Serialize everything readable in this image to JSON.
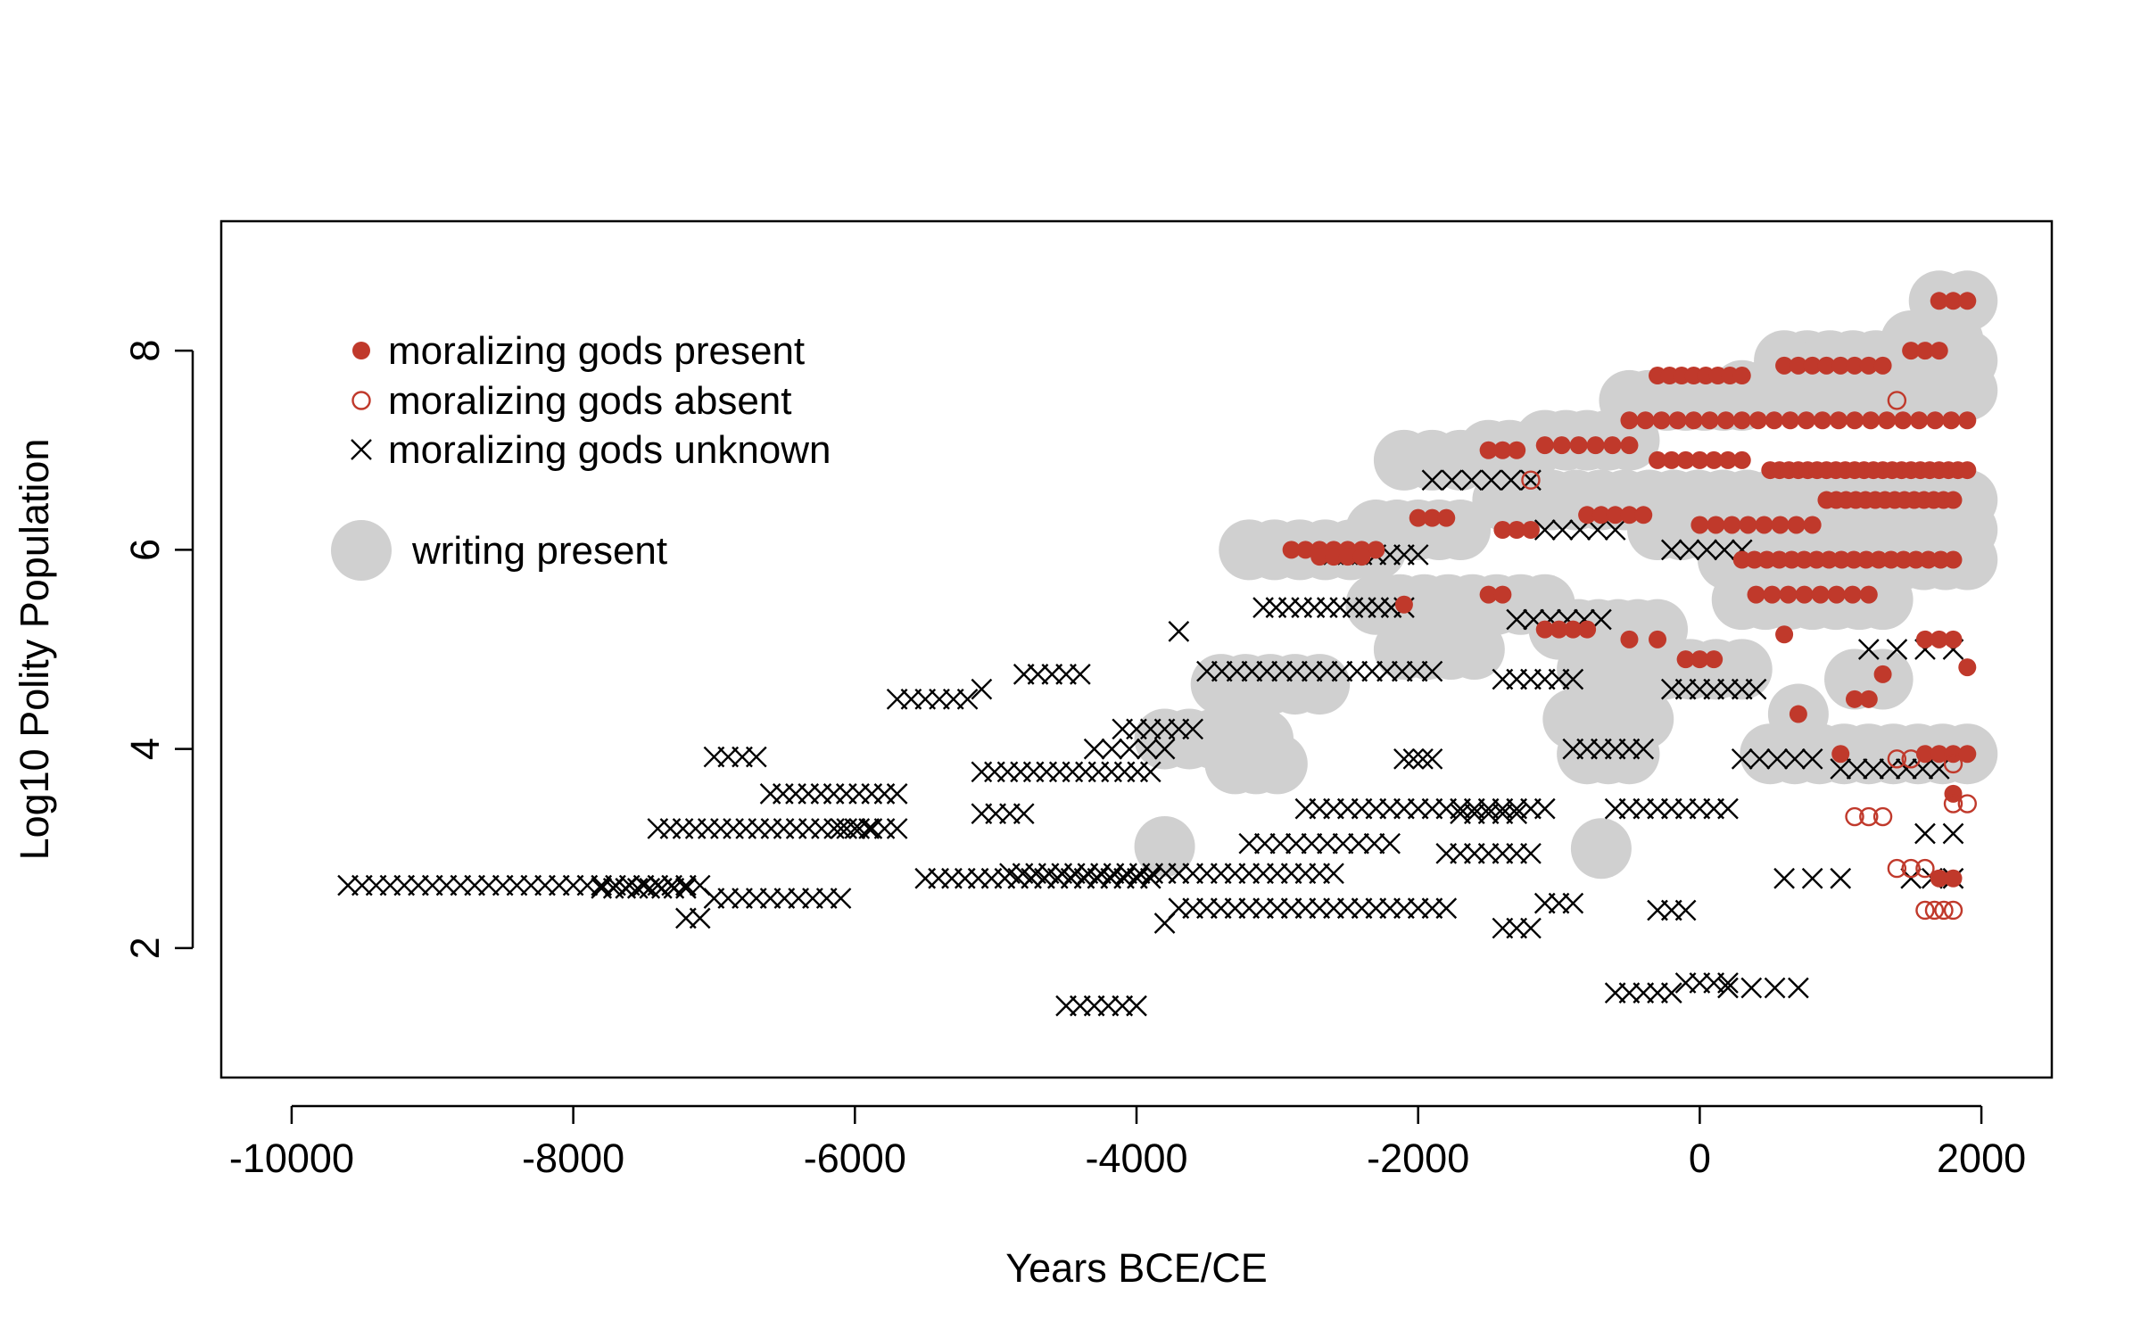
{
  "chart_data": {
    "type": "scatter",
    "title": "",
    "xlabel": "Years BCE/CE",
    "ylabel": "Log10 Polity Population",
    "xlim": [
      -10500,
      2500
    ],
    "ylim": [
      0.7,
      9.3
    ],
    "x_ticks": [
      -10000,
      -8000,
      -6000,
      -4000,
      -2000,
      0,
      2000
    ],
    "x_tick_labels": [
      "-10000",
      "-8000",
      "-6000",
      "-4000",
      "-2000",
      "0",
      "2000"
    ],
    "y_ticks": [
      2,
      4,
      6,
      8
    ],
    "y_tick_labels": [
      "2",
      "4",
      "6",
      "8"
    ],
    "grid": false,
    "legend_position": "top-left",
    "legend": [
      {
        "label": "moralizing gods present",
        "marker": "filled-circle",
        "color": "#c0392b"
      },
      {
        "label": "moralizing gods absent",
        "marker": "open-circle",
        "color": "#c0392b"
      },
      {
        "label": "moralizing gods unknown",
        "marker": "cross",
        "color": "#000000"
      },
      {
        "label": "writing present",
        "marker": "large-grey-circle",
        "color": "#d0d0d0"
      }
    ],
    "colors": {
      "present": "#c0392b",
      "absent": "#c0392b",
      "unknown": "#000000",
      "writing": "#d0d0d0"
    },
    "series": [
      {
        "name": "moralizing gods unknown",
        "marker": "cross",
        "segments": [
          {
            "x0": -9600,
            "x1": -7100,
            "y": 2.63,
            "n": 26
          },
          {
            "x0": -7800,
            "x1": -7200,
            "y": 2.6,
            "n": 8
          },
          {
            "x0": -7200,
            "x1": -7100,
            "y": 2.3,
            "n": 2
          },
          {
            "x0": -7000,
            "x1": -6700,
            "y": 3.92,
            "n": 4
          },
          {
            "x0": -7400,
            "x1": -5700,
            "y": 3.2,
            "n": 20
          },
          {
            "x0": -6600,
            "x1": -5700,
            "y": 3.55,
            "n": 11
          },
          {
            "x0": -7000,
            "x1": -6100,
            "y": 2.5,
            "n": 10
          },
          {
            "x0": -6100,
            "x1": -5900,
            "y": 3.2,
            "n": 3
          },
          {
            "x0": -5700,
            "x1": -5200,
            "y": 4.5,
            "n": 6
          },
          {
            "x0": -5100,
            "x1": -5100,
            "y": 4.6,
            "n": 1
          },
          {
            "x0": -4800,
            "x1": -4400,
            "y": 4.75,
            "n": 5
          },
          {
            "x0": -5500,
            "x1": -3900,
            "y": 2.7,
            "n": 18
          },
          {
            "x0": -5100,
            "x1": -3900,
            "y": 3.77,
            "n": 14
          },
          {
            "x0": -5100,
            "x1": -4800,
            "y": 3.35,
            "n": 4
          },
          {
            "x0": -4900,
            "x1": -3700,
            "y": 2.75,
            "n": 14
          },
          {
            "x0": -4500,
            "x1": -4000,
            "y": 1.42,
            "n": 6
          },
          {
            "x0": -4100,
            "x1": -3600,
            "y": 4.2,
            "n": 6
          },
          {
            "x0": -4300,
            "x1": -3800,
            "y": 4.0,
            "n": 5
          },
          {
            "x0": -3800,
            "x1": -3800,
            "y": 2.25,
            "n": 1
          },
          {
            "x0": -3700,
            "x1": -3700,
            "y": 5.18,
            "n": 1
          },
          {
            "x0": -3700,
            "x1": -2600,
            "y": 2.75,
            "n": 12
          },
          {
            "x0": -3700,
            "x1": -1800,
            "y": 2.4,
            "n": 20
          },
          {
            "x0": -3500,
            "x1": -1900,
            "y": 4.78,
            "n": 16
          },
          {
            "x0": -3100,
            "x1": -2100,
            "y": 5.42,
            "n": 12
          },
          {
            "x0": -3200,
            "x1": -2200,
            "y": 3.05,
            "n": 10
          },
          {
            "x0": -2800,
            "x1": -1100,
            "y": 3.4,
            "n": 18
          },
          {
            "x0": -2600,
            "x1": -2000,
            "y": 5.95,
            "n": 7
          },
          {
            "x0": -2100,
            "x1": -1900,
            "y": 3.9,
            "n": 4
          },
          {
            "x0": -1800,
            "x1": -1200,
            "y": 2.95,
            "n": 7
          },
          {
            "x0": -1700,
            "x1": -1300,
            "y": 3.35,
            "n": 5
          },
          {
            "x0": -1400,
            "x1": -900,
            "y": 4.7,
            "n": 6
          },
          {
            "x0": -1300,
            "x1": -700,
            "y": 5.3,
            "n": 6
          },
          {
            "x0": -1400,
            "x1": -1200,
            "y": 2.2,
            "n": 3
          },
          {
            "x0": -1100,
            "x1": -900,
            "y": 2.45,
            "n": 3
          },
          {
            "x0": -900,
            "x1": -400,
            "y": 4.0,
            "n": 6
          },
          {
            "x0": -600,
            "x1": 200,
            "y": 3.4,
            "n": 9
          },
          {
            "x0": -600,
            "x1": -200,
            "y": 1.55,
            "n": 5
          },
          {
            "x0": -100,
            "x1": 200,
            "y": 1.65,
            "n": 4
          },
          {
            "x0": 200,
            "x1": 700,
            "y": 1.6,
            "n": 4
          },
          {
            "x0": -300,
            "x1": -100,
            "y": 2.38,
            "n": 3
          },
          {
            "x0": -200,
            "x1": 400,
            "y": 4.6,
            "n": 7
          },
          {
            "x0": 300,
            "x1": 800,
            "y": 3.9,
            "n": 5
          },
          {
            "x0": 600,
            "x1": 1000,
            "y": 2.7,
            "n": 3
          },
          {
            "x0": 1000,
            "x1": 1700,
            "y": 3.8,
            "n": 7
          },
          {
            "x0": -1900,
            "x1": -1200,
            "y": 6.7,
            "n": 6
          },
          {
            "x0": -1100,
            "x1": -600,
            "y": 6.2,
            "n": 5
          },
          {
            "x0": -200,
            "x1": 300,
            "y": 6.0,
            "n": 5
          },
          {
            "x0": 1500,
            "x1": 1800,
            "y": 2.7,
            "n": 3
          },
          {
            "x0": 1600,
            "x1": 1800,
            "y": 3.15,
            "n": 2
          },
          {
            "x0": 1200,
            "x1": 1800,
            "y": 5.0,
            "n": 4
          }
        ]
      },
      {
        "name": "moralizing gods present",
        "marker": "filled-circle",
        "segments": [
          {
            "x0": 1700,
            "x1": 1900,
            "y": 8.5,
            "n": 3
          },
          {
            "x0": 1500,
            "x1": 1700,
            "y": 8.0,
            "n": 3
          },
          {
            "x0": -300,
            "x1": 300,
            "y": 7.75,
            "n": 8
          },
          {
            "x0": 600,
            "x1": 1300,
            "y": 7.85,
            "n": 8
          },
          {
            "x0": -500,
            "x1": 1900,
            "y": 7.3,
            "n": 22
          },
          {
            "x0": -1100,
            "x1": -500,
            "y": 7.05,
            "n": 6
          },
          {
            "x0": -1500,
            "x1": -1300,
            "y": 7.0,
            "n": 3
          },
          {
            "x0": 500,
            "x1": 1900,
            "y": 6.8,
            "n": 22
          },
          {
            "x0": -300,
            "x1": 300,
            "y": 6.9,
            "n": 7
          },
          {
            "x0": 900,
            "x1": 1800,
            "y": 6.5,
            "n": 14
          },
          {
            "x0": -800,
            "x1": -400,
            "y": 6.35,
            "n": 5
          },
          {
            "x0": -2000,
            "x1": -1800,
            "y": 6.32,
            "n": 3
          },
          {
            "x0": -1400,
            "x1": -1200,
            "y": 6.2,
            "n": 3
          },
          {
            "x0": 0,
            "x1": 800,
            "y": 6.25,
            "n": 8
          },
          {
            "x0": -2900,
            "x1": -2300,
            "y": 6.0,
            "n": 7
          },
          {
            "x0": -2700,
            "x1": -2400,
            "y": 5.93,
            "n": 4
          },
          {
            "x0": 300,
            "x1": 1800,
            "y": 5.9,
            "n": 18
          },
          {
            "x0": 400,
            "x1": 1200,
            "y": 5.55,
            "n": 8
          },
          {
            "x0": -2100,
            "x1": -2100,
            "y": 5.45,
            "n": 1
          },
          {
            "x0": -1500,
            "x1": -1400,
            "y": 5.55,
            "n": 2
          },
          {
            "x0": -1100,
            "x1": -800,
            "y": 5.2,
            "n": 4
          },
          {
            "x0": -500,
            "x1": -300,
            "y": 5.1,
            "n": 2
          },
          {
            "x0": -100,
            "x1": 100,
            "y": 4.9,
            "n": 3
          },
          {
            "x0": 600,
            "x1": 600,
            "y": 5.15,
            "n": 1
          },
          {
            "x0": 1300,
            "x1": 1300,
            "y": 4.75,
            "n": 1
          },
          {
            "x0": 1100,
            "x1": 1200,
            "y": 4.5,
            "n": 2
          },
          {
            "x0": 700,
            "x1": 700,
            "y": 4.35,
            "n": 1
          },
          {
            "x0": 1600,
            "x1": 1800,
            "y": 5.1,
            "n": 3
          },
          {
            "x0": 1900,
            "x1": 1900,
            "y": 4.82,
            "n": 1
          },
          {
            "x0": 1000,
            "x1": 1000,
            "y": 3.95,
            "n": 1
          },
          {
            "x0": 1600,
            "x1": 1900,
            "y": 3.95,
            "n": 4
          },
          {
            "x0": 1800,
            "x1": 1800,
            "y": 3.55,
            "n": 1
          },
          {
            "x0": 1700,
            "x1": 1800,
            "y": 2.7,
            "n": 2
          }
        ]
      },
      {
        "name": "moralizing gods absent",
        "marker": "open-circle",
        "segments": [
          {
            "x0": -1200,
            "x1": -1200,
            "y": 6.7,
            "n": 1
          },
          {
            "x0": 1100,
            "x1": 1300,
            "y": 3.32,
            "n": 3
          },
          {
            "x0": 1400,
            "x1": 1500,
            "y": 3.9,
            "n": 2
          },
          {
            "x0": 1800,
            "x1": 1900,
            "y": 3.45,
            "n": 2
          },
          {
            "x0": 1400,
            "x1": 1600,
            "y": 2.8,
            "n": 3
          },
          {
            "x0": 1600,
            "x1": 1800,
            "y": 2.38,
            "n": 4
          },
          {
            "x0": 1400,
            "x1": 1400,
            "y": 7.5,
            "n": 1
          },
          {
            "x0": 1800,
            "x1": 1800,
            "y": 3.85,
            "n": 1
          }
        ]
      },
      {
        "name": "writing present",
        "marker": "large-grey-circle",
        "segments": [
          {
            "x0": -3200,
            "x1": -2300,
            "y": 6.0,
            "n": 6
          },
          {
            "x0": -2300,
            "x1": -1700,
            "y": 6.2,
            "n": 5
          },
          {
            "x0": -2100,
            "x1": -1700,
            "y": 6.9,
            "n": 3
          },
          {
            "x0": -1500,
            "x1": -1200,
            "y": 7.0,
            "n": 3
          },
          {
            "x0": -1100,
            "x1": -500,
            "y": 7.1,
            "n": 5
          },
          {
            "x0": -500,
            "x1": 300,
            "y": 7.5,
            "n": 7
          },
          {
            "x0": 300,
            "x1": 1900,
            "y": 7.6,
            "n": 11
          },
          {
            "x0": 600,
            "x1": 1900,
            "y": 7.9,
            "n": 9
          },
          {
            "x0": 1700,
            "x1": 1900,
            "y": 8.5,
            "n": 2
          },
          {
            "x0": 1500,
            "x1": 1800,
            "y": 8.1,
            "n": 3
          },
          {
            "x0": -1400,
            "x1": 1900,
            "y": 6.5,
            "n": 20
          },
          {
            "x0": -300,
            "x1": 1900,
            "y": 6.2,
            "n": 14
          },
          {
            "x0": 200,
            "x1": 1900,
            "y": 5.9,
            "n": 12
          },
          {
            "x0": 300,
            "x1": 1300,
            "y": 5.5,
            "n": 7
          },
          {
            "x0": -2300,
            "x1": -1100,
            "y": 5.45,
            "n": 8
          },
          {
            "x0": -1000,
            "x1": -300,
            "y": 5.2,
            "n": 6
          },
          {
            "x0": -2100,
            "x1": -1600,
            "y": 5.0,
            "n": 4
          },
          {
            "x0": -800,
            "x1": 300,
            "y": 4.8,
            "n": 7
          },
          {
            "x0": -3400,
            "x1": -2700,
            "y": 4.65,
            "n": 5
          },
          {
            "x0": -900,
            "x1": -400,
            "y": 4.3,
            "n": 4
          },
          {
            "x0": -3800,
            "x1": -3100,
            "y": 4.1,
            "n": 5
          },
          {
            "x0": -3300,
            "x1": -3000,
            "y": 3.85,
            "n": 3
          },
          {
            "x0": -800,
            "x1": -500,
            "y": 3.95,
            "n": 3
          },
          {
            "x0": 500,
            "x1": 1900,
            "y": 3.95,
            "n": 9
          },
          {
            "x0": 1100,
            "x1": 1300,
            "y": 4.7,
            "n": 2
          },
          {
            "x0": 700,
            "x1": 700,
            "y": 4.35,
            "n": 1
          },
          {
            "x0": -3800,
            "x1": -3800,
            "y": 3.02,
            "n": 1
          },
          {
            "x0": -700,
            "x1": -700,
            "y": 3.0,
            "n": 1
          }
        ]
      }
    ]
  }
}
